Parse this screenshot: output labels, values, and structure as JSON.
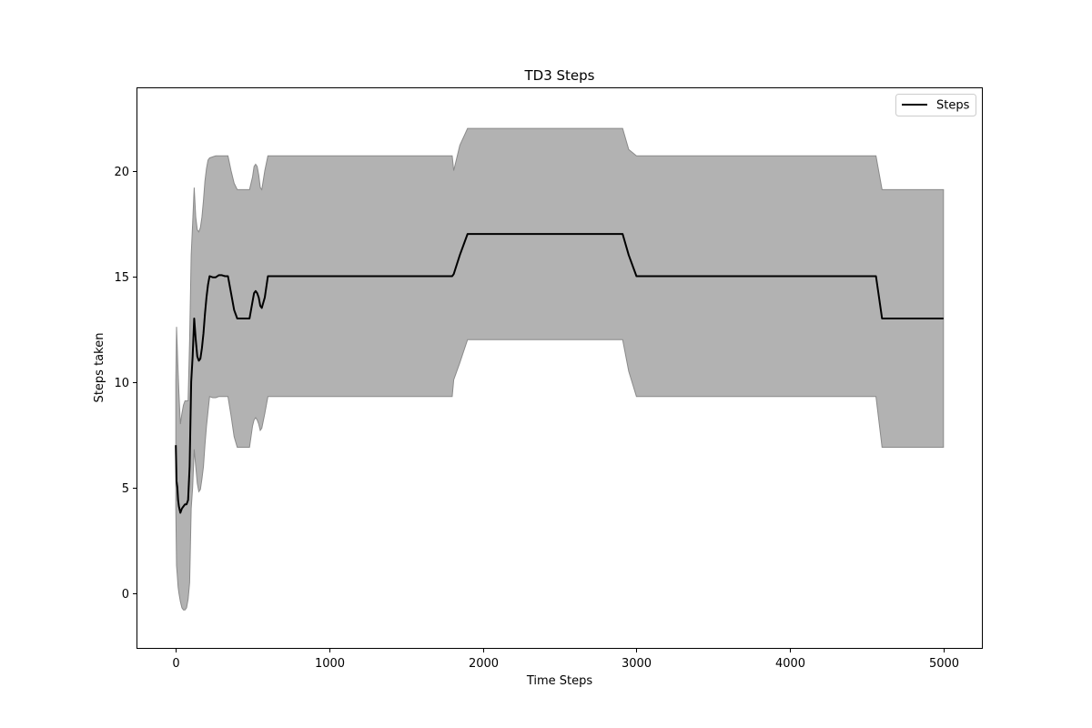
{
  "chart_data": {
    "type": "line",
    "title": "TD3 Steps",
    "xlabel": "Time Steps",
    "ylabel": "Steps taken",
    "xlim": [
      -250,
      5250
    ],
    "ylim": [
      -2.6,
      23.9
    ],
    "xticks": [
      0,
      1000,
      2000,
      3000,
      4000,
      5000
    ],
    "yticks": [
      0,
      5,
      10,
      15,
      20
    ],
    "grid": false,
    "legend": {
      "position": "top-right",
      "entries": [
        "Steps"
      ]
    },
    "colors": {
      "line": "#000000",
      "band_fill": "#b2b2b2",
      "band_edge": "#8a8a8a"
    },
    "series": [
      {
        "name": "Steps",
        "x": [
          0,
          5,
          10,
          15,
          20,
          30,
          40,
          50,
          60,
          70,
          80,
          90,
          100,
          110,
          120,
          130,
          140,
          150,
          160,
          170,
          180,
          190,
          200,
          210,
          220,
          240,
          260,
          280,
          300,
          320,
          340,
          360,
          380,
          400,
          420,
          440,
          460,
          480,
          500,
          510,
          520,
          530,
          540,
          550,
          560,
          580,
          600,
          700,
          800,
          1000,
          1200,
          1400,
          1600,
          1800,
          1810,
          1850,
          1900,
          2000,
          2200,
          2400,
          2600,
          2800,
          2910,
          2950,
          3000,
          3200,
          3400,
          3600,
          3800,
          4000,
          4200,
          4400,
          4560,
          4600,
          4700,
          4800,
          5000
        ],
        "y": [
          7.0,
          5.3,
          5.0,
          4.4,
          4.1,
          3.8,
          4.0,
          4.1,
          4.2,
          4.2,
          4.4,
          6.0,
          10.0,
          11.2,
          13.0,
          12.0,
          11.2,
          11.0,
          11.1,
          11.6,
          12.3,
          13.2,
          14.0,
          14.6,
          15.0,
          14.95,
          14.95,
          15.05,
          15.05,
          15.0,
          15.0,
          14.2,
          13.4,
          13.0,
          13.0,
          13.0,
          13.0,
          13.0,
          13.8,
          14.2,
          14.3,
          14.2,
          14.0,
          13.6,
          13.5,
          14.0,
          15.0,
          15.0,
          15.0,
          15.0,
          15.0,
          15.0,
          15.0,
          15.0,
          15.1,
          16.0,
          17.0,
          17.0,
          17.0,
          17.0,
          17.0,
          17.0,
          17.0,
          16.0,
          15.0,
          15.0,
          15.0,
          15.0,
          15.0,
          15.0,
          15.0,
          15.0,
          15.0,
          13.0,
          13.0,
          13.0,
          13.0
        ],
        "upper": [
          10.0,
          12.6,
          11.5,
          10.5,
          9.5,
          8.0,
          8.5,
          8.9,
          9.1,
          9.1,
          9.1,
          12.0,
          16.0,
          17.5,
          19.2,
          17.8,
          17.2,
          17.1,
          17.3,
          17.8,
          18.6,
          19.5,
          20.1,
          20.5,
          20.6,
          20.65,
          20.7,
          20.7,
          20.7,
          20.7,
          20.7,
          20.0,
          19.4,
          19.1,
          19.1,
          19.1,
          19.1,
          19.1,
          19.7,
          20.2,
          20.3,
          20.2,
          19.8,
          19.2,
          19.1,
          20.0,
          20.7,
          20.7,
          20.7,
          20.7,
          20.7,
          20.7,
          20.7,
          20.7,
          20.0,
          21.2,
          22.0,
          22.0,
          22.0,
          22.0,
          22.0,
          22.0,
          22.0,
          21.0,
          20.7,
          20.7,
          20.7,
          20.7,
          20.7,
          20.7,
          20.7,
          20.7,
          20.7,
          19.1,
          19.1,
          19.1,
          19.1
        ],
        "lower": [
          4.0,
          1.3,
          0.8,
          0.3,
          0.0,
          -0.4,
          -0.7,
          -0.8,
          -0.8,
          -0.7,
          -0.3,
          0.5,
          4.0,
          5.0,
          6.8,
          6.0,
          5.2,
          4.8,
          4.9,
          5.4,
          6.0,
          7.0,
          7.9,
          8.6,
          9.3,
          9.25,
          9.25,
          9.3,
          9.3,
          9.3,
          9.3,
          8.4,
          7.4,
          6.9,
          6.9,
          6.9,
          6.9,
          6.9,
          7.9,
          8.2,
          8.3,
          8.2,
          8.0,
          7.7,
          7.8,
          8.5,
          9.3,
          9.3,
          9.3,
          9.3,
          9.3,
          9.3,
          9.3,
          9.3,
          10.1,
          10.9,
          12.0,
          12.0,
          12.0,
          12.0,
          12.0,
          12.0,
          12.0,
          10.5,
          9.3,
          9.3,
          9.3,
          9.3,
          9.3,
          9.3,
          9.3,
          9.3,
          9.3,
          6.9,
          6.9,
          6.9,
          6.9
        ]
      }
    ]
  }
}
